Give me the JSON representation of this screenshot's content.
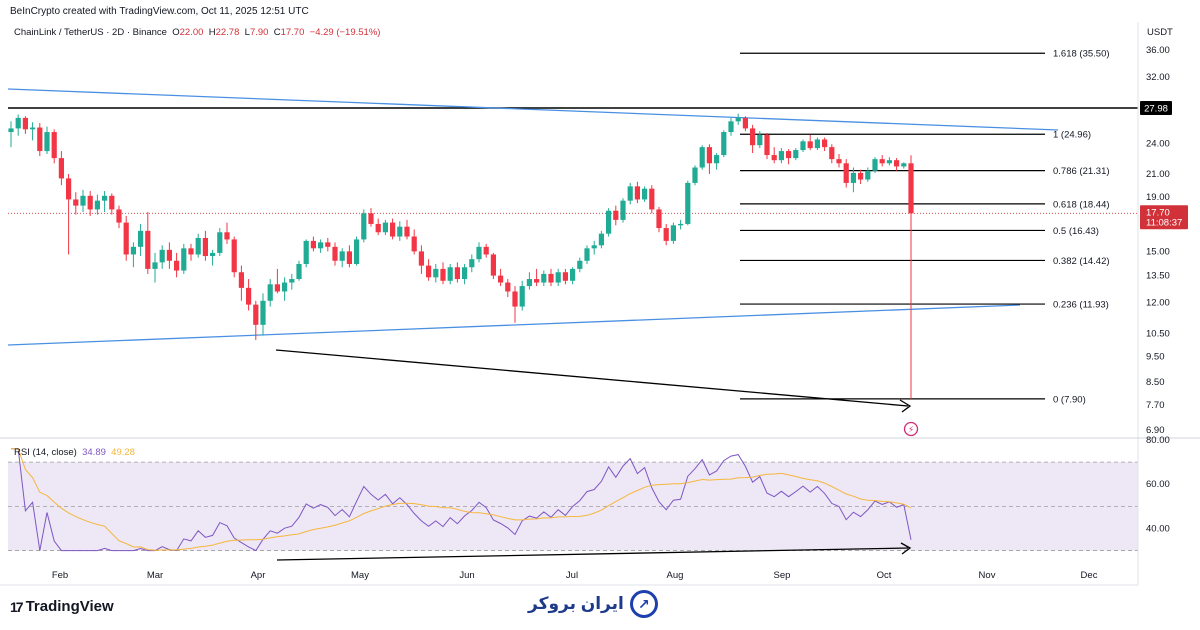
{
  "header": {
    "created_by": "BeInCrypto created with TradingView.com, Oct 11, 2025 12:51 UTC"
  },
  "symbol_bar": {
    "name": "ChainLink / TetherUS · 2D · Binance",
    "o_label": "O",
    "o_value": "22.00",
    "h_label": "H",
    "h_value": "22.78",
    "l_label": "L",
    "l_value": "7.90",
    "c_label": "C",
    "c_value": "17.70",
    "change": "−4.29 (−19.51%)"
  },
  "currency": "USDT",
  "rsi_legend": {
    "label": "RSI (14, close)",
    "value": "34.89",
    "ma_value": "49.28"
  },
  "footer": {
    "tradingview": "TradingView",
    "brand_text": "ایران بروکر"
  },
  "colors": {
    "bull": "#22ab94",
    "bear": "#f23645",
    "trendline": "#4a90e2",
    "rsi": "#7e57c2",
    "rsi_ma": "#f6b73c",
    "rsi_band": "#ede7f6",
    "price_tag": "#d1323a"
  },
  "chart_data": {
    "type": "candlestick",
    "symbol": "ChainLink / TetherUS",
    "interval": "2D",
    "exchange": "Binance",
    "y_scale": "log",
    "ylim": [
      6.9,
      40.0
    ],
    "y_ticks": [
      {
        "value": 36.0,
        "label": "36.00"
      },
      {
        "value": 32.0,
        "label": "32.00"
      },
      {
        "value": 24.0,
        "label": "24.00"
      },
      {
        "value": 21.0,
        "label": "21.00"
      },
      {
        "value": 19.0,
        "label": "19.00"
      },
      {
        "value": 15.0,
        "label": "15.00"
      },
      {
        "value": 13.5,
        "label": "13.50"
      },
      {
        "value": 12.0,
        "label": "12.00"
      },
      {
        "value": 10.5,
        "label": "10.50"
      },
      {
        "value": 9.5,
        "label": "9.50"
      },
      {
        "value": 8.5,
        "label": "8.50"
      },
      {
        "value": 7.7,
        "label": "7.70"
      },
      {
        "value": 6.9,
        "label": "6.90"
      }
    ],
    "x_ticks": [
      "Feb",
      "Mar",
      "Apr",
      "May",
      "Jun",
      "Jul",
      "Aug",
      "Sep",
      "Oct",
      "Nov",
      "Dec"
    ],
    "current_price": {
      "value": 17.7,
      "label": "17.70",
      "countdown": "11:08:37"
    },
    "resistance": {
      "value": 27.98,
      "label": "27.98"
    },
    "fib_levels": [
      {
        "ratio": "1.618",
        "value": 35.5,
        "label": "1.618 (35.50)"
      },
      {
        "ratio": "1",
        "value": 24.96,
        "label": "1 (24.96)"
      },
      {
        "ratio": "0.786",
        "value": 21.31,
        "label": "0.786 (21.31)"
      },
      {
        "ratio": "0.618",
        "value": 18.44,
        "label": "0.618 (18.44)"
      },
      {
        "ratio": "0.5",
        "value": 16.43,
        "label": "0.5 (16.43)"
      },
      {
        "ratio": "0.382",
        "value": 14.42,
        "label": "0.382 (14.42)"
      },
      {
        "ratio": "0.236",
        "value": 11.93,
        "label": "0.236 (11.93)"
      },
      {
        "ratio": "0",
        "value": 7.9,
        "label": "0 (7.90)"
      }
    ],
    "candles_ohlc": [
      [
        25.2,
        26.4,
        23.6,
        25.6
      ],
      [
        25.6,
        27.2,
        24.8,
        26.8
      ],
      [
        26.8,
        27.0,
        25.0,
        25.5
      ],
      [
        25.5,
        26.3,
        24.3,
        25.7
      ],
      [
        25.7,
        26.2,
        22.7,
        23.2
      ],
      [
        23.2,
        25.8,
        22.9,
        25.2
      ],
      [
        25.2,
        25.5,
        22.0,
        22.5
      ],
      [
        22.5,
        23.2,
        20.0,
        20.6
      ],
      [
        20.6,
        21.0,
        14.8,
        18.8
      ],
      [
        18.8,
        19.4,
        17.6,
        18.3
      ],
      [
        18.3,
        19.6,
        17.8,
        19.1
      ],
      [
        19.1,
        19.5,
        17.5,
        18.0
      ],
      [
        18.0,
        19.2,
        17.6,
        18.7
      ],
      [
        18.7,
        19.5,
        17.8,
        19.1
      ],
      [
        19.1,
        19.3,
        17.6,
        18.0
      ],
      [
        18.0,
        18.3,
        16.6,
        17.0
      ],
      [
        17.0,
        17.5,
        14.4,
        14.8
      ],
      [
        14.8,
        15.6,
        14.0,
        15.3
      ],
      [
        15.3,
        16.9,
        14.7,
        16.4
      ],
      [
        16.4,
        17.8,
        13.6,
        13.9
      ],
      [
        13.9,
        14.9,
        13.1,
        14.3
      ],
      [
        14.3,
        15.4,
        13.9,
        15.1
      ],
      [
        15.1,
        15.6,
        13.9,
        14.4
      ],
      [
        14.4,
        14.9,
        13.4,
        13.8
      ],
      [
        13.8,
        15.5,
        13.6,
        15.2
      ],
      [
        15.2,
        15.5,
        14.4,
        14.8
      ],
      [
        14.8,
        16.2,
        14.6,
        15.9
      ],
      [
        15.9,
        16.4,
        14.4,
        14.7
      ],
      [
        14.7,
        15.1,
        14.1,
        14.9
      ],
      [
        14.9,
        16.6,
        14.7,
        16.3
      ],
      [
        16.3,
        17.0,
        15.5,
        15.8
      ],
      [
        15.8,
        16.0,
        13.4,
        13.7
      ],
      [
        13.7,
        14.1,
        12.1,
        12.8
      ],
      [
        12.8,
        13.3,
        11.6,
        11.9
      ],
      [
        11.9,
        12.1,
        10.2,
        10.9
      ],
      [
        10.9,
        12.5,
        10.4,
        12.1
      ],
      [
        12.1,
        13.3,
        11.8,
        13.0
      ],
      [
        13.0,
        13.9,
        12.5,
        12.6
      ],
      [
        12.6,
        13.4,
        12.1,
        13.1
      ],
      [
        13.1,
        13.6,
        12.7,
        13.3
      ],
      [
        13.3,
        14.4,
        13.2,
        14.2
      ],
      [
        14.2,
        15.8,
        14.0,
        15.7
      ],
      [
        15.7,
        16.0,
        15.0,
        15.2
      ],
      [
        15.2,
        15.8,
        14.9,
        15.6
      ],
      [
        15.6,
        15.9,
        15.0,
        15.3
      ],
      [
        15.3,
        15.6,
        14.1,
        14.4
      ],
      [
        14.4,
        15.2,
        14.0,
        15.0
      ],
      [
        15.0,
        15.4,
        14.0,
        14.2
      ],
      [
        14.2,
        16.0,
        14.1,
        15.8
      ],
      [
        15.8,
        18.0,
        15.6,
        17.7
      ],
      [
        17.7,
        18.1,
        16.7,
        16.9
      ],
      [
        16.9,
        17.3,
        16.1,
        16.3
      ],
      [
        16.3,
        17.2,
        16.1,
        17.0
      ],
      [
        17.0,
        17.3,
        15.8,
        16.0
      ],
      [
        16.0,
        17.1,
        15.7,
        16.7
      ],
      [
        16.7,
        17.2,
        15.8,
        16.0
      ],
      [
        16.0,
        16.5,
        14.8,
        15.0
      ],
      [
        15.0,
        15.4,
        13.6,
        14.1
      ],
      [
        14.1,
        14.5,
        13.2,
        13.4
      ],
      [
        13.4,
        14.2,
        13.1,
        13.9
      ],
      [
        13.9,
        14.3,
        13.0,
        13.2
      ],
      [
        13.2,
        14.2,
        13.0,
        14.0
      ],
      [
        14.0,
        14.3,
        13.1,
        13.3
      ],
      [
        13.3,
        14.2,
        13.0,
        14.0
      ],
      [
        14.0,
        14.8,
        13.7,
        14.5
      ],
      [
        14.5,
        15.6,
        14.3,
        15.3
      ],
      [
        15.3,
        15.5,
        14.6,
        14.8
      ],
      [
        14.8,
        14.9,
        13.3,
        13.5
      ],
      [
        13.5,
        13.9,
        12.9,
        13.1
      ],
      [
        13.1,
        13.3,
        12.3,
        12.6
      ],
      [
        12.6,
        12.9,
        11.0,
        11.8
      ],
      [
        11.8,
        13.2,
        11.6,
        12.9
      ],
      [
        12.9,
        13.7,
        12.7,
        13.3
      ],
      [
        13.3,
        13.9,
        12.9,
        13.1
      ],
      [
        13.1,
        13.8,
        12.9,
        13.6
      ],
      [
        13.6,
        13.9,
        12.9,
        13.1
      ],
      [
        13.1,
        13.9,
        12.9,
        13.7
      ],
      [
        13.7,
        13.9,
        13.0,
        13.2
      ],
      [
        13.2,
        14.0,
        13.0,
        13.9
      ],
      [
        13.9,
        14.6,
        13.7,
        14.4
      ],
      [
        14.4,
        15.4,
        14.2,
        15.2
      ],
      [
        15.2,
        15.7,
        14.8,
        15.4
      ],
      [
        15.4,
        16.4,
        15.2,
        16.2
      ],
      [
        16.2,
        18.1,
        16.0,
        17.9
      ],
      [
        17.9,
        18.3,
        16.8,
        17.2
      ],
      [
        17.2,
        18.9,
        17.0,
        18.7
      ],
      [
        18.7,
        20.2,
        18.4,
        19.9
      ],
      [
        19.9,
        20.3,
        18.5,
        18.8
      ],
      [
        18.8,
        19.9,
        18.6,
        19.7
      ],
      [
        19.7,
        20.0,
        17.7,
        18.0
      ],
      [
        18.0,
        18.2,
        16.3,
        16.6
      ],
      [
        16.6,
        16.9,
        15.4,
        15.7
      ],
      [
        15.7,
        17.0,
        15.5,
        16.8
      ],
      [
        16.8,
        17.2,
        16.5,
        16.9
      ],
      [
        16.9,
        20.4,
        16.8,
        20.2
      ],
      [
        20.2,
        21.8,
        20.0,
        21.6
      ],
      [
        21.6,
        23.8,
        21.4,
        23.6
      ],
      [
        23.6,
        23.9,
        21.0,
        22.0
      ],
      [
        22.0,
        23.0,
        21.4,
        22.8
      ],
      [
        22.8,
        25.4,
        22.6,
        25.2
      ],
      [
        25.2,
        26.8,
        24.8,
        26.4
      ],
      [
        26.4,
        27.3,
        26.0,
        26.8
      ],
      [
        26.8,
        27.0,
        25.3,
        25.6
      ],
      [
        25.6,
        26.0,
        23.0,
        23.8
      ],
      [
        23.8,
        25.3,
        23.5,
        24.9
      ],
      [
        24.9,
        25.1,
        22.4,
        22.8
      ],
      [
        22.8,
        23.6,
        22.0,
        22.3
      ],
      [
        22.3,
        23.5,
        22.0,
        23.2
      ],
      [
        23.2,
        23.4,
        21.9,
        22.5
      ],
      [
        22.5,
        23.5,
        22.3,
        23.3
      ],
      [
        23.3,
        24.4,
        23.1,
        24.2
      ],
      [
        24.2,
        24.9,
        23.3,
        23.5
      ],
      [
        23.5,
        24.6,
        23.3,
        24.4
      ],
      [
        24.4,
        24.6,
        23.2,
        23.6
      ],
      [
        23.6,
        23.9,
        22.0,
        22.4
      ],
      [
        22.4,
        22.9,
        21.6,
        22.0
      ],
      [
        22.0,
        22.4,
        19.8,
        20.2
      ],
      [
        20.2,
        21.6,
        19.4,
        21.1
      ],
      [
        21.1,
        21.4,
        20.1,
        20.5
      ],
      [
        20.5,
        21.6,
        20.3,
        21.3
      ],
      [
        21.3,
        22.6,
        21.1,
        22.4
      ],
      [
        22.4,
        22.8,
        21.7,
        22.0
      ],
      [
        22.0,
        22.6,
        21.8,
        22.3
      ],
      [
        22.3,
        22.5,
        21.3,
        21.7
      ],
      [
        21.7,
        22.1,
        21.5,
        22.0
      ],
      [
        22.0,
        22.78,
        7.9,
        17.7
      ]
    ],
    "rsi": {
      "label": "RSI (14, close)",
      "value": 34.89,
      "ma": 49.28,
      "ylim": [
        28,
        80
      ],
      "ticks": [
        {
          "value": 80,
          "label": "80.00"
        },
        {
          "value": 60,
          "label": "60.00"
        },
        {
          "value": 40,
          "label": "40.00"
        }
      ],
      "bands": [
        70,
        50,
        30
      ]
    },
    "annotations": [
      "Descending upper trendline",
      "Ascending lower trendline",
      "Bearish divergence arrow on price (Apr low to Oct low)",
      "Divergence arrow on RSI"
    ]
  }
}
